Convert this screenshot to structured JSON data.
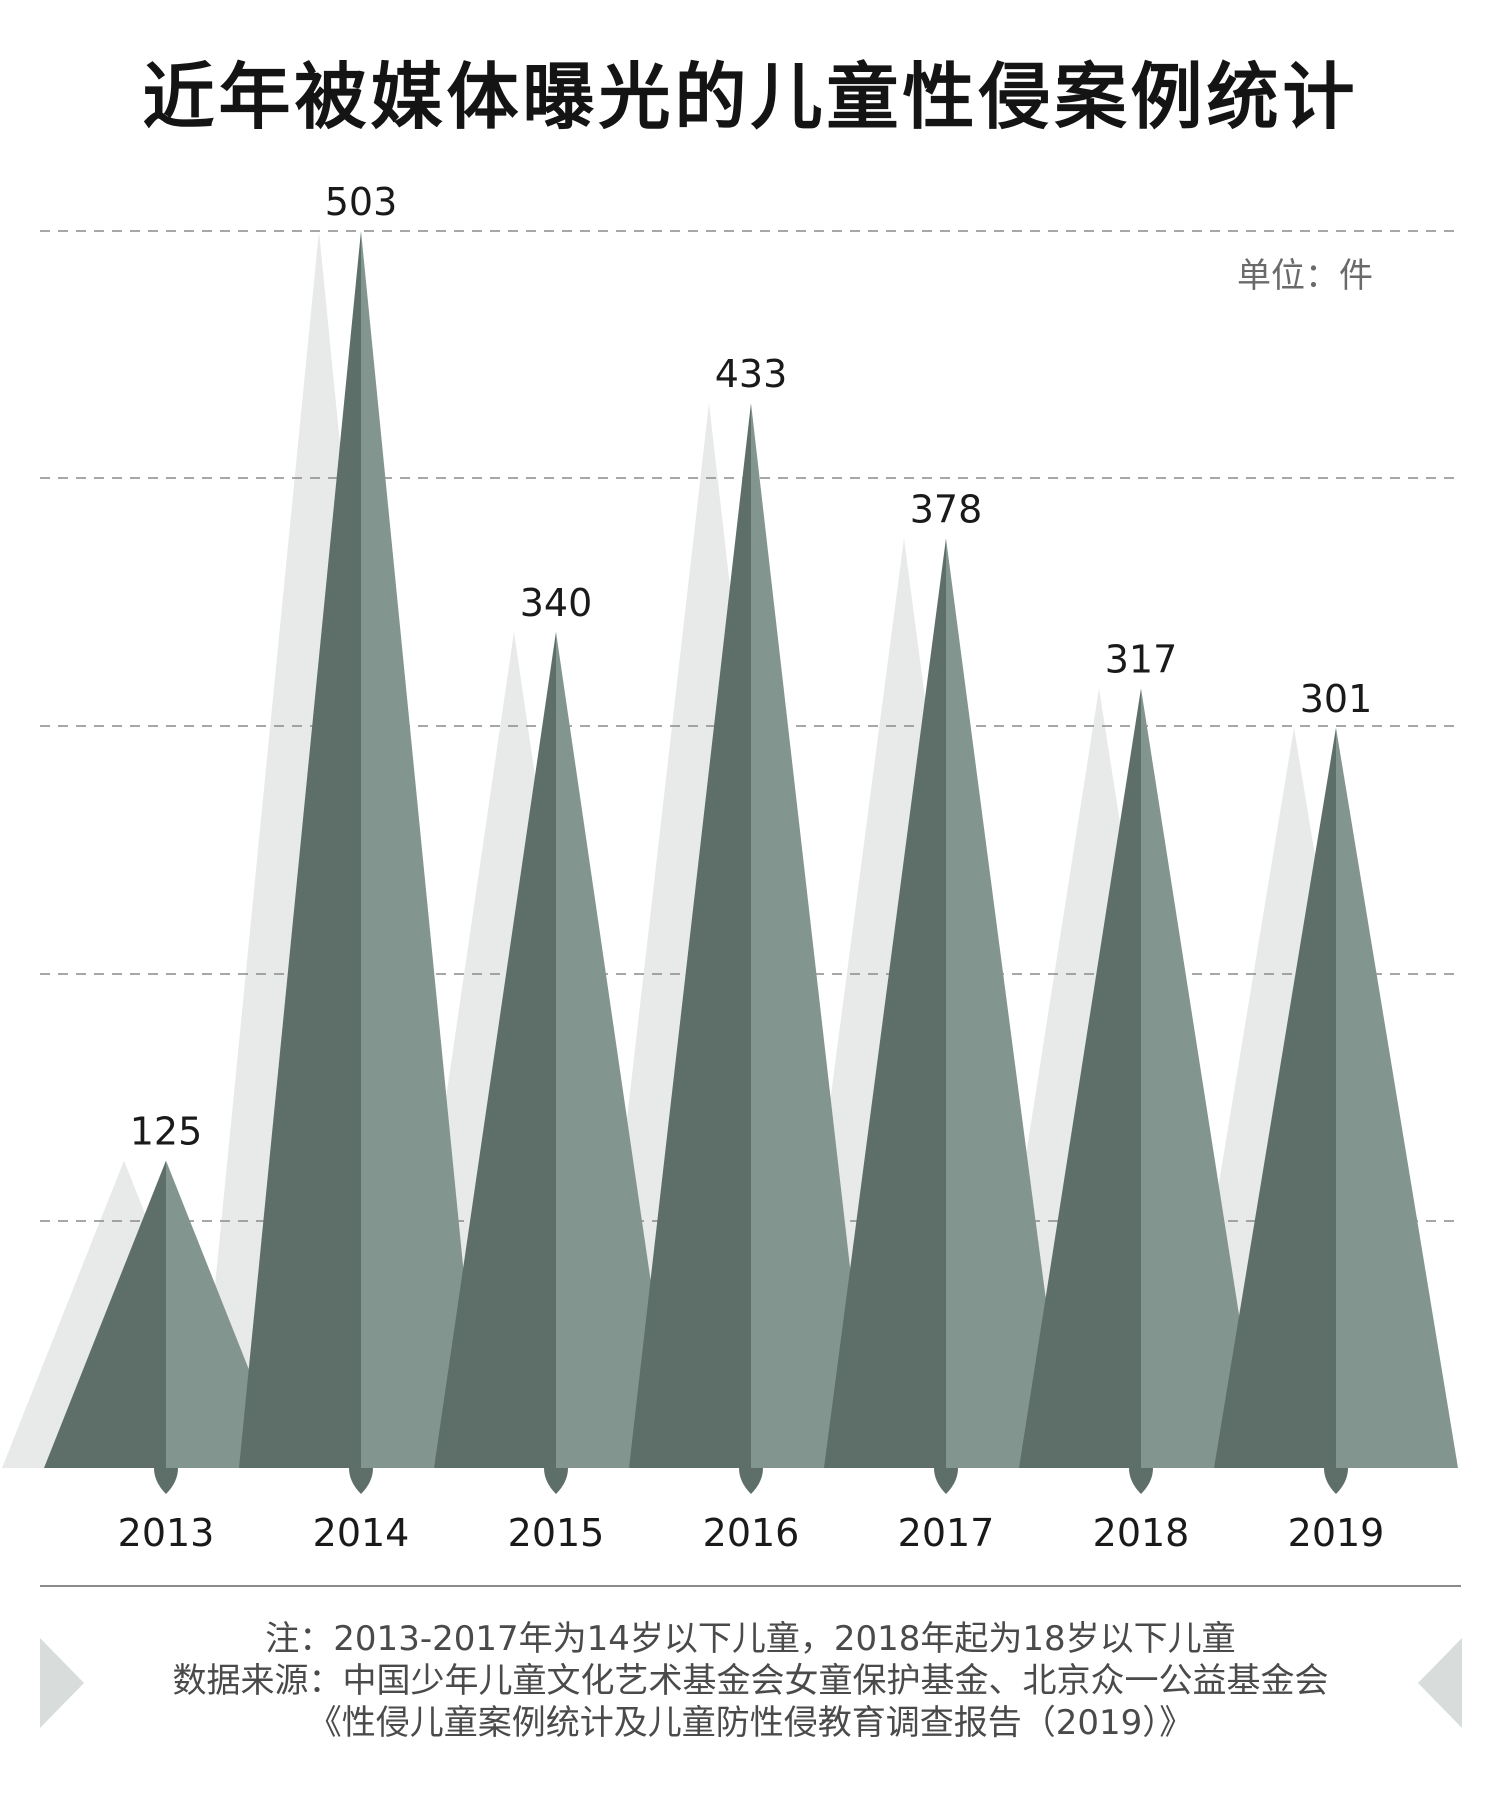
{
  "title": "近年被媒体曝光的儿童性侵案例统计",
  "unit_label": "单位：件",
  "notes": {
    "line1": "注：2013-2017年为14岁以下儿童，2018年起为18岁以下儿童",
    "line2": "数据来源：中国少年儿童文化艺术基金会女童保护基金、北京众一公益基金会",
    "line3": "《性侵儿童案例统计及儿童防性侵教育调查报告（2019）》"
  },
  "colors": {
    "dark": "#5e6f6a",
    "light": "#83958f",
    "shadow": "#e8eaea",
    "grid": "#8a8a8a",
    "text": "#1a1a1a"
  },
  "chart_data": {
    "type": "bar",
    "categories": [
      "2013",
      "2014",
      "2015",
      "2016",
      "2017",
      "2018",
      "2019"
    ],
    "values": [
      125,
      503,
      340,
      433,
      378,
      317,
      301
    ],
    "title": "近年被媒体曝光的儿童性侵案例统计",
    "xlabel": "",
    "ylabel": "",
    "ylim": [
      0,
      503
    ],
    "grid": true,
    "unit": "单位：件"
  }
}
